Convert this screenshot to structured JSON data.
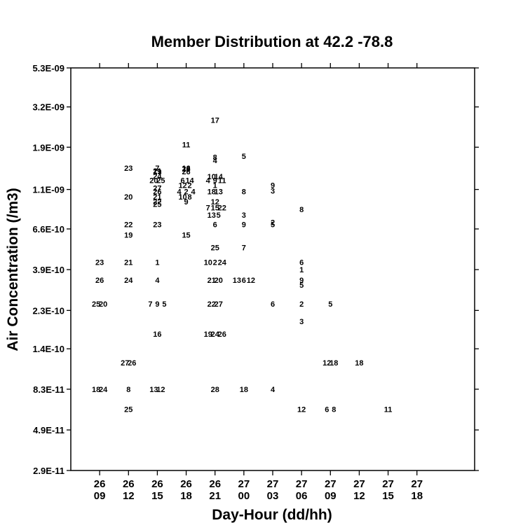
{
  "chart_data": {
    "type": "scatter",
    "title": "Member Distribution at  42.2  -78.8",
    "xlabel": "Day-Hour (dd/hh)",
    "ylabel": "Air Concentration (/m3)",
    "y_scale": "log",
    "ylim": [
      "2.9E-11",
      "5.3E-09"
    ],
    "xlim": [
      "26/06",
      "28/00"
    ],
    "y_ticks": [
      "5.3E-09",
      "3.2E-09",
      "1.9E-09",
      "1.1E-09",
      "6.6E-10",
      "3.9E-10",
      "2.3E-10",
      "1.4E-10",
      "8.3E-11",
      "4.9E-11",
      "2.9E-11"
    ],
    "x_ticks": [
      {
        "day": "26",
        "hour": "09"
      },
      {
        "day": "26",
        "hour": "12"
      },
      {
        "day": "26",
        "hour": "15"
      },
      {
        "day": "26",
        "hour": "18"
      },
      {
        "day": "26",
        "hour": "21"
      },
      {
        "day": "27",
        "hour": "00"
      },
      {
        "day": "27",
        "hour": "03"
      },
      {
        "day": "27",
        "hour": "06"
      },
      {
        "day": "27",
        "hour": "09"
      },
      {
        "day": "27",
        "hour": "12"
      },
      {
        "day": "27",
        "hour": "15"
      },
      {
        "day": "27",
        "hour": "18"
      }
    ],
    "points": [
      {
        "label": "17",
        "x": "26/21",
        "y": "2.70E-09"
      },
      {
        "label": "11",
        "x": "26/18",
        "y": "1.97E-09"
      },
      {
        "label": "8",
        "x": "26/21",
        "y": "1.67E-09"
      },
      {
        "label": "5",
        "x": "27/00",
        "y": "1.69E-09"
      },
      {
        "label": "4",
        "x": "26/21",
        "y": "1.60E-09"
      },
      {
        "label": "23",
        "x": "26/12",
        "y": "1.45E-09"
      },
      {
        "label": "19",
        "x": "26/15",
        "y": "1.39E-09"
      },
      {
        "label": "24",
        "x": "26/15",
        "y": "1.31E-09"
      },
      {
        "label": "7",
        "x": "26/15",
        "y": "1.45E-09"
      },
      {
        "label": "21",
        "x": "26/15",
        "y": "1.40E-09"
      },
      {
        "label": "16",
        "x": "26/18",
        "y": "1.45E-09"
      },
      {
        "label": "26",
        "x": "26/18",
        "y": "1.39E-09"
      },
      {
        "label": "28",
        "x": "26/18",
        "y": "1.44E-09"
      },
      {
        "label": "20",
        "x": "26/15",
        "y": "1.24E-09"
      },
      {
        "label": "25",
        "x": "26/15",
        "y": "1.24E-09"
      },
      {
        "label": "6",
        "x": "26/18",
        "y": "1.24E-09"
      },
      {
        "label": "14",
        "x": "26/18",
        "y": "1.24E-09"
      },
      {
        "label": "10",
        "x": "26/21",
        "y": "1.30E-09"
      },
      {
        "label": "14",
        "x": "26/21",
        "y": "1.30E-09"
      },
      {
        "label": "4",
        "x": "26/21",
        "y": "1.24E-09"
      },
      {
        "label": "9",
        "x": "26/21",
        "y": "1.24E-09"
      },
      {
        "label": "11",
        "x": "26/21",
        "y": "1.24E-09"
      },
      {
        "label": "27",
        "x": "26/15",
        "y": "1.12E-09"
      },
      {
        "label": "26",
        "x": "26/15",
        "y": "1.07E-09"
      },
      {
        "label": "12",
        "x": "26/18",
        "y": "1.16E-09"
      },
      {
        "label": "2",
        "x": "26/18",
        "y": "1.16E-09"
      },
      {
        "label": "4",
        "x": "26/18",
        "y": "1.07E-09"
      },
      {
        "label": "2",
        "x": "26/18",
        "y": "1.07E-09"
      },
      {
        "label": "4",
        "x": "26/18",
        "y": "1.07E-09"
      },
      {
        "label": "1",
        "x": "26/21",
        "y": "1.16E-09"
      },
      {
        "label": "18",
        "x": "26/21",
        "y": "1.07E-09"
      },
      {
        "label": "13",
        "x": "26/21",
        "y": "1.07E-09"
      },
      {
        "label": "8",
        "x": "27/00",
        "y": "1.07E-09"
      },
      {
        "label": "9",
        "x": "27/03",
        "y": "1.16E-09"
      },
      {
        "label": "3",
        "x": "27/03",
        "y": "1.08E-09"
      },
      {
        "label": "20",
        "x": "26/12",
        "y": "1.00E-09"
      },
      {
        "label": "21",
        "x": "26/15",
        "y": "1.00E-09"
      },
      {
        "label": "22",
        "x": "26/15",
        "y": "0.94E-09"
      },
      {
        "label": "25",
        "x": "26/15",
        "y": "0.91E-09"
      },
      {
        "label": "10",
        "x": "26/18",
        "y": "1.00E-09"
      },
      {
        "label": "8",
        "x": "26/18",
        "y": "1.00E-09"
      },
      {
        "label": "9",
        "x": "26/18",
        "y": "0.94E-09"
      },
      {
        "label": "12",
        "x": "26/21",
        "y": "0.94E-09"
      },
      {
        "label": "7",
        "x": "26/21",
        "y": "0.87E-09"
      },
      {
        "label": "15",
        "x": "26/21",
        "y": "0.87E-09"
      },
      {
        "label": "22",
        "x": "26/21",
        "y": "0.87E-09"
      },
      {
        "label": "8",
        "x": "27/06",
        "y": "0.85E-09"
      },
      {
        "label": "13",
        "x": "26/21",
        "y": "0.79E-09"
      },
      {
        "label": "5",
        "x": "26/21",
        "y": "0.79E-09"
      },
      {
        "label": "3",
        "x": "27/00",
        "y": "0.79E-09"
      },
      {
        "label": "22",
        "x": "26/12",
        "y": "0.70E-09"
      },
      {
        "label": "23",
        "x": "26/15",
        "y": "0.70E-09"
      },
      {
        "label": "6",
        "x": "26/21",
        "y": "0.70E-09"
      },
      {
        "label": "9",
        "x": "27/00",
        "y": "0.70E-09"
      },
      {
        "label": "2",
        "x": "27/03",
        "y": "0.72E-09"
      },
      {
        "label": "5",
        "x": "27/03",
        "y": "0.70E-09"
      },
      {
        "label": "19",
        "x": "26/12",
        "y": "0.61E-09"
      },
      {
        "label": "15",
        "x": "26/18",
        "y": "0.61E-09"
      },
      {
        "label": "25",
        "x": "26/21",
        "y": "0.52E-09"
      },
      {
        "label": "7",
        "x": "27/00",
        "y": "0.52E-09"
      },
      {
        "label": "23",
        "x": "26/09",
        "y": "0.43E-09"
      },
      {
        "label": "21",
        "x": "26/12",
        "y": "0.43E-09"
      },
      {
        "label": "1",
        "x": "26/15",
        "y": "0.43E-09"
      },
      {
        "label": "10",
        "x": "26/21",
        "y": "0.43E-09"
      },
      {
        "label": "2",
        "x": "26/21",
        "y": "0.43E-09"
      },
      {
        "label": "24",
        "x": "26/21",
        "y": "0.43E-09"
      },
      {
        "label": "6",
        "x": "27/06",
        "y": "0.43E-09"
      },
      {
        "label": "1",
        "x": "27/06",
        "y": "0.39E-09"
      },
      {
        "label": "26",
        "x": "26/09",
        "y": "0.34E-09"
      },
      {
        "label": "24",
        "x": "26/12",
        "y": "0.34E-09"
      },
      {
        "label": "4",
        "x": "26/15",
        "y": "0.34E-09"
      },
      {
        "label": "21",
        "x": "26/21",
        "y": "0.34E-09"
      },
      {
        "label": "20",
        "x": "26/21",
        "y": "0.34E-09"
      },
      {
        "label": "13",
        "x": "27/00",
        "y": "0.34E-09"
      },
      {
        "label": "6",
        "x": "27/00",
        "y": "0.34E-09"
      },
      {
        "label": "12",
        "x": "27/00",
        "y": "0.34E-09"
      },
      {
        "label": "9",
        "x": "27/06",
        "y": "0.34E-09"
      },
      {
        "label": "5",
        "x": "27/06",
        "y": "0.32E-09"
      },
      {
        "label": "25",
        "x": "26/09",
        "y": "0.25E-09"
      },
      {
        "label": "20",
        "x": "26/09",
        "y": "0.25E-09"
      },
      {
        "label": "7",
        "x": "26/15",
        "y": "0.25E-09"
      },
      {
        "label": "9",
        "x": "26/15",
        "y": "0.25E-09"
      },
      {
        "label": "5",
        "x": "26/15",
        "y": "0.25E-09"
      },
      {
        "label": "22",
        "x": "26/21",
        "y": "0.25E-09"
      },
      {
        "label": "27",
        "x": "26/21",
        "y": "0.25E-09"
      },
      {
        "label": "6",
        "x": "27/03",
        "y": "0.25E-09"
      },
      {
        "label": "2",
        "x": "27/06",
        "y": "0.25E-09"
      },
      {
        "label": "5",
        "x": "27/09",
        "y": "0.25E-09"
      },
      {
        "label": "3",
        "x": "27/06",
        "y": "0.20E-09"
      },
      {
        "label": "16",
        "x": "26/15",
        "y": "0.17E-09"
      },
      {
        "label": "19",
        "x": "26/21",
        "y": "0.17E-09"
      },
      {
        "label": "24",
        "x": "26/21",
        "y": "0.17E-09"
      },
      {
        "label": "26",
        "x": "26/21",
        "y": "0.17E-09"
      },
      {
        "label": "27",
        "x": "26/12",
        "y": "1.17E-10"
      },
      {
        "label": "26",
        "x": "26/12",
        "y": "1.17E-10"
      },
      {
        "label": "12",
        "x": "27/09",
        "y": "1.17E-10"
      },
      {
        "label": "18",
        "x": "27/09",
        "y": "1.17E-10"
      },
      {
        "label": "18",
        "x": "27/12",
        "y": "1.17E-10"
      },
      {
        "label": "18",
        "x": "26/09",
        "y": "8.3E-11"
      },
      {
        "label": "24",
        "x": "26/09",
        "y": "8.3E-11"
      },
      {
        "label": "8",
        "x": "26/12",
        "y": "8.3E-11"
      },
      {
        "label": "13",
        "x": "26/15",
        "y": "8.3E-11"
      },
      {
        "label": "12",
        "x": "26/15",
        "y": "8.3E-11"
      },
      {
        "label": "28",
        "x": "26/21",
        "y": "8.3E-11"
      },
      {
        "label": "18",
        "x": "27/00",
        "y": "8.3E-11"
      },
      {
        "label": "4",
        "x": "27/03",
        "y": "8.3E-11"
      },
      {
        "label": "25",
        "x": "26/12",
        "y": "6.4E-11"
      },
      {
        "label": "12",
        "x": "27/06",
        "y": "6.4E-11"
      },
      {
        "label": "6",
        "x": "27/09",
        "y": "6.4E-11"
      },
      {
        "label": "8",
        "x": "27/09",
        "y": "6.4E-11"
      },
      {
        "label": "11",
        "x": "27/15",
        "y": "6.4E-11"
      }
    ]
  }
}
